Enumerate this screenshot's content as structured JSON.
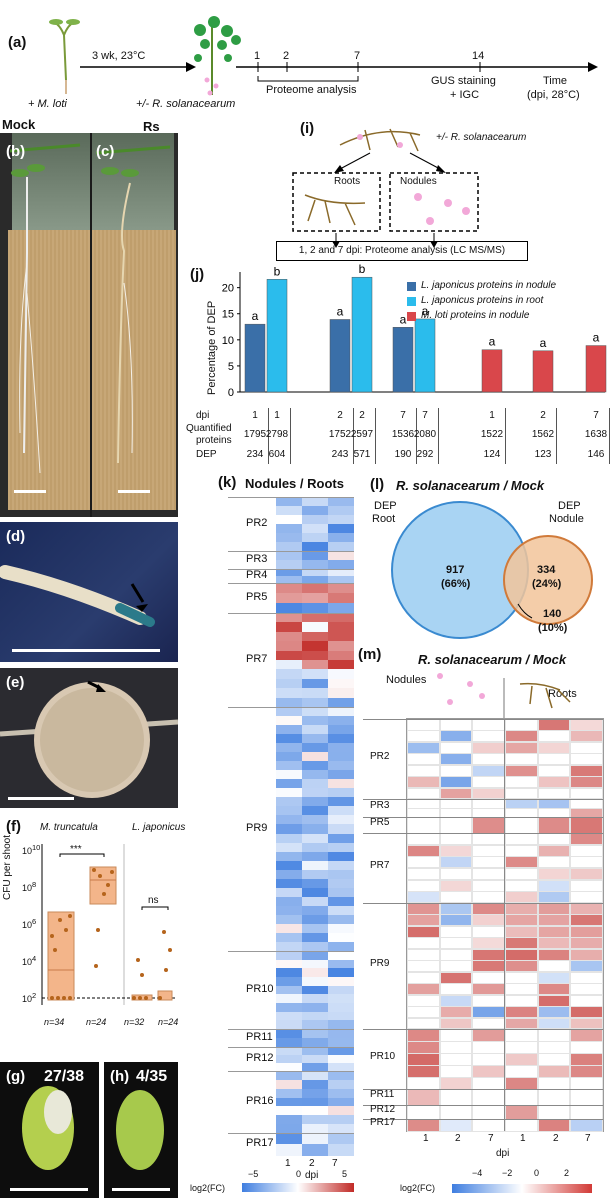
{
  "figure": {
    "panel_labels": {
      "a": "(a)",
      "b": "(b)",
      "c": "(c)",
      "d": "(d)",
      "e": "(e)",
      "f": "(f)",
      "g": "(g)",
      "h": "(h)",
      "i": "(i)",
      "j": "(j)",
      "k": "(k)",
      "l": "(l)",
      "m": "(m)"
    },
    "timeline": {
      "step1": "3 wk, 23°C",
      "mloti": "+ M. loti",
      "rsol": "+/- R. solanacearum",
      "ticks": [
        "1",
        "2",
        "7",
        "14"
      ],
      "proteome": "Proteome analysis",
      "gus": "GUS staining",
      "igc": "+ IGC",
      "time": "Time",
      "dpi_unit": "(dpi, 28°C)"
    },
    "photos": {
      "mock": "Mock",
      "rs": "Rs",
      "g_count": "27/38",
      "h_count": "4/35"
    },
    "panel_f": {
      "species1": "M. truncatula",
      "species2": "L. japonicus",
      "ylabel": "CFU per shoot",
      "yticks": [
        "10",
        "10",
        "10",
        "10",
        "10"
      ],
      "yexp": [
        "10",
        "8",
        "6",
        "4",
        "2"
      ],
      "sig1": "***",
      "sig2": "ns",
      "n": [
        "n=34",
        "n=24",
        "n=32",
        "n=24"
      ]
    },
    "panel_i": {
      "top": "+/- R. solanacearum",
      "roots": "Roots",
      "nodules": "Nodules",
      "caption": "1, 2 and 7 dpi: Proteome analysis (LC MS/MS)"
    },
    "panel_l": {
      "title": "R. solanacearum / Mock",
      "root_label_1": "DEP",
      "root_label_2": "Root",
      "nod_label_1": "DEP",
      "nod_label_2": "Nodule",
      "root_only": "917",
      "root_pct": "(66%)",
      "nod_only": "334",
      "nod_pct": "(24%)",
      "overlap": "140",
      "overlap_pct": "(10%)"
    },
    "panel_k": {
      "title": "Nodules / Roots",
      "groups": [
        "PR2",
        "PR3",
        "PR4",
        "PR5",
        "PR7",
        "PR9",
        "PR10",
        "PR11",
        "PR12",
        "PR16",
        "PR17"
      ],
      "xticks": [
        "1",
        "2",
        "7"
      ],
      "xlabel": "dpi",
      "legend_ticks": [
        "−5",
        "0",
        "5"
      ],
      "legend_label": "log2(FC)"
    },
    "panel_m": {
      "title": "R. solanacearum / Mock",
      "nodules": "Nodules",
      "roots": "Roots",
      "groups": [
        "PR2",
        "PR3",
        "PR5",
        "PR7",
        "PR9",
        "PR10",
        "PR11",
        "PR12",
        "PR17"
      ],
      "xticks": [
        "1",
        "2",
        "7",
        "1",
        "2",
        "7"
      ],
      "xlabel": "dpi",
      "legend_ticks": [
        "−4",
        "−2",
        "0",
        "2"
      ],
      "legend_label": "log2(FC)"
    },
    "colors": {
      "nodule_plant": "#3a6fa8",
      "root_plant": "#2bbcec",
      "mloti": "#d9474b",
      "venn_root": "#a9d4f3",
      "venn_nodule": "#f2c49a",
      "box": "#f3b58a"
    }
  },
  "chart_data": {
    "type": "bar",
    "ylabel": "Percentage of DEP",
    "ylim": [
      0,
      23
    ],
    "yticks": [
      "0",
      "5",
      "10",
      "15",
      "20"
    ],
    "legend": [
      "L. japonicus proteins in nodule",
      "L. japonicus proteins in root",
      "M. loti proteins in nodule"
    ],
    "bars": [
      {
        "series": "L. japonicus proteins in nodule",
        "dpi": "1",
        "value": 13.0,
        "letter": "a",
        "quantified": "1795",
        "dep": "234"
      },
      {
        "series": "L. japonicus proteins in root",
        "dpi": "1",
        "value": 21.6,
        "letter": "b",
        "quantified": "2798",
        "dep": "604"
      },
      {
        "series": "L. japonicus proteins in nodule",
        "dpi": "2",
        "value": 13.9,
        "letter": "a",
        "quantified": "1752",
        "dep": "243"
      },
      {
        "series": "L. japonicus proteins in root",
        "dpi": "2",
        "value": 22.0,
        "letter": "b",
        "quantified": "2597",
        "dep": "571"
      },
      {
        "series": "L. japonicus proteins in nodule",
        "dpi": "7",
        "value": 12.4,
        "letter": "a",
        "quantified": "1536",
        "dep": "190"
      },
      {
        "series": "L. japonicus proteins in root",
        "dpi": "7",
        "value": 14.0,
        "letter": "a",
        "quantified": "2080",
        "dep": "292"
      },
      {
        "series": "M. loti proteins in nodule",
        "dpi": "1",
        "value": 8.1,
        "letter": "a",
        "quantified": "1522",
        "dep": "124"
      },
      {
        "series": "M. loti proteins in nodule",
        "dpi": "2",
        "value": 7.9,
        "letter": "a",
        "quantified": "1562",
        "dep": "123"
      },
      {
        "series": "M. loti proteins in nodule",
        "dpi": "7",
        "value": 8.9,
        "letter": "a",
        "quantified": "1638",
        "dep": "146"
      }
    ],
    "table_rows": [
      "dpi",
      "Quantified",
      "proteins",
      "DEP"
    ]
  }
}
